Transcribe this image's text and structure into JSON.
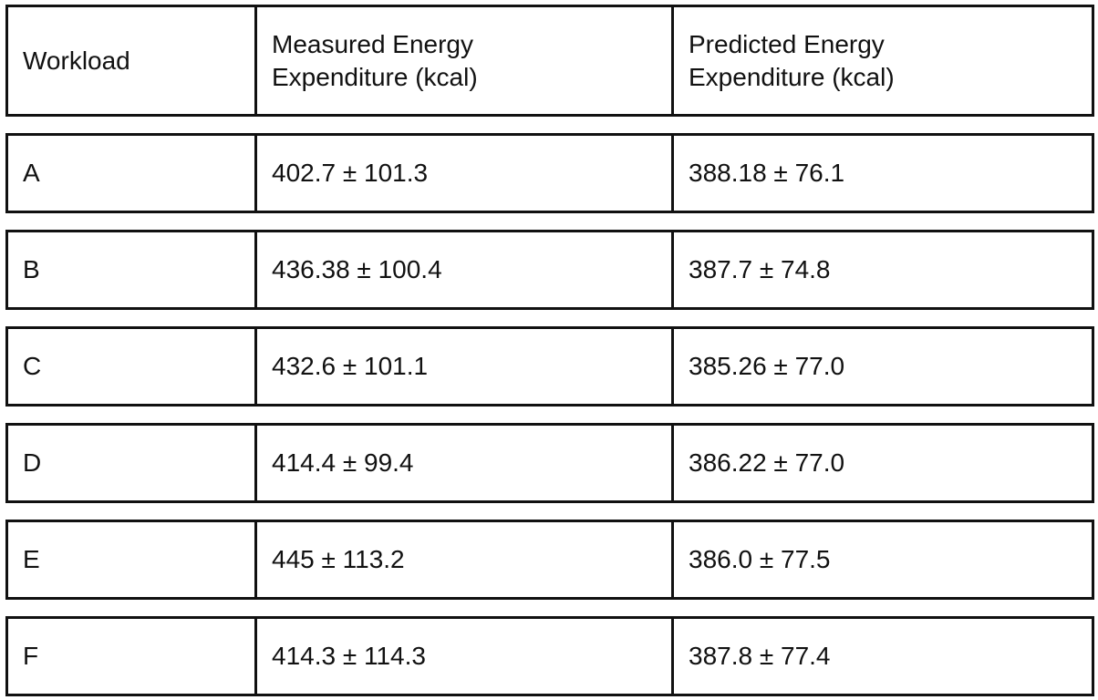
{
  "table": {
    "header": [
      "Workload",
      "Measured Energy Expenditure (kcal)",
      "Predicted Energy Expenditure (kcal)"
    ],
    "rows": [
      [
        "A",
        "402.7 ± 101.3",
        "388.18 ± 76.1"
      ],
      [
        "B",
        "436.38 ± 100.4",
        "387.7 ± 74.8"
      ],
      [
        "C",
        "432.6 ± 101.1",
        "385.26 ± 77.0"
      ],
      [
        "D",
        "414.4 ± 99.4",
        "386.22 ± 77.0"
      ],
      [
        "E",
        "445 ± 113.2",
        "386.0 ± 77.5"
      ],
      [
        "F",
        "414.3 ± 114.3",
        "387.8 ± 77.4"
      ]
    ]
  }
}
